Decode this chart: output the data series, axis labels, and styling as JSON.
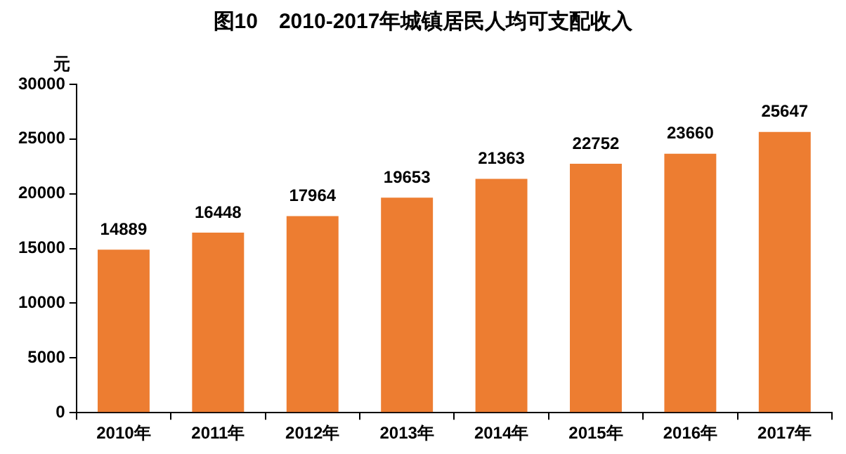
{
  "chart_data": {
    "type": "bar",
    "title": "图10　2010-2017年城镇居民人均可支配收入",
    "ylabel": "元",
    "categories": [
      "2010年",
      "2011年",
      "2012年",
      "2013年",
      "2014年",
      "2015年",
      "2016年",
      "2017年"
    ],
    "values": [
      14889,
      16448,
      17964,
      19653,
      21363,
      22752,
      23660,
      25647
    ],
    "color": "#ed7d31",
    "ylim": [
      0,
      30000
    ],
    "yticks": [
      0,
      5000,
      10000,
      15000,
      20000,
      25000,
      30000
    ],
    "grid": false,
    "legend": false,
    "data_labels": true
  }
}
